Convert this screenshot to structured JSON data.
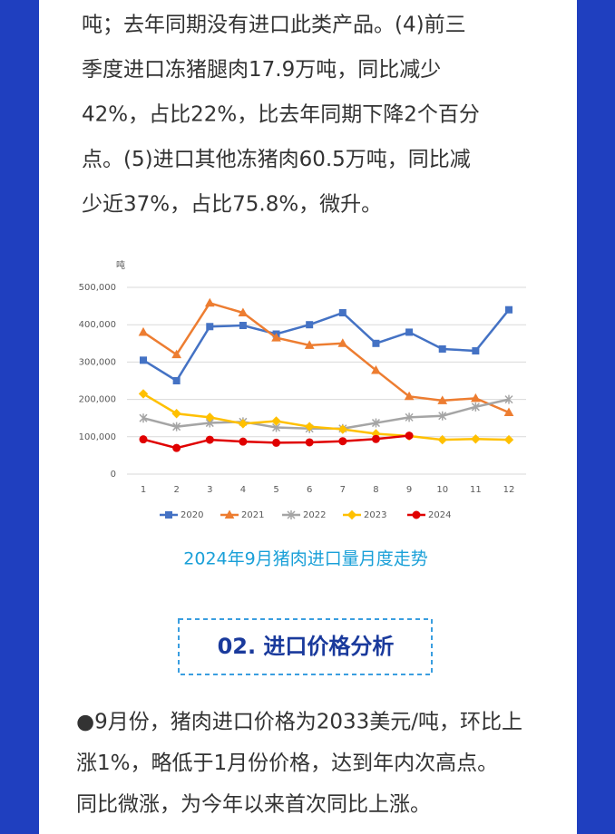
{
  "intro_lines": [
    "吨；去年同期没有进口此类产品。(4)前三",
    "季度进口冻猪腿肉17.9万吨，同比减少",
    "42%，占比22%，比去年同期下降2个百分",
    "点。(5)进口其他冻猪肉60.5万吨，同比减",
    "少近37%，占比75.8%，微升。"
  ],
  "chart_data": {
    "type": "line",
    "y_unit": "吨",
    "categories": [
      "1",
      "2",
      "3",
      "4",
      "5",
      "6",
      "7",
      "8",
      "9",
      "10",
      "11",
      "12"
    ],
    "ylim": [
      0,
      500000
    ],
    "yticks": [
      0,
      {
        "value": 100000,
        "label": "100,000"
      },
      {
        "value": 200000,
        "label": "200,000"
      },
      {
        "value": 300000,
        "label": "300,000"
      },
      {
        "value": 400000,
        "label": "400,000"
      },
      {
        "value": 500000,
        "label": "500,000"
      }
    ],
    "grid": true,
    "legend": "bottom",
    "series": [
      {
        "name": "2020",
        "color": "#4472c4",
        "marker": "square",
        "values": [
          305000,
          250000,
          395000,
          398000,
          375000,
          400000,
          432000,
          350000,
          380000,
          335000,
          330000,
          440000
        ]
      },
      {
        "name": "2021",
        "color": "#ed7d31",
        "marker": "triangle",
        "values": [
          380000,
          320000,
          458000,
          432000,
          365000,
          345000,
          350000,
          278000,
          208000,
          197000,
          203000,
          165000
        ]
      },
      {
        "name": "2022",
        "color": "#a5a5a5",
        "marker": "star",
        "values": [
          150000,
          127000,
          137000,
          140000,
          125000,
          122000,
          122000,
          137000,
          152000,
          156000,
          180000,
          200000
        ]
      },
      {
        "name": "2023",
        "color": "#ffc000",
        "marker": "diamond",
        "values": [
          215000,
          162000,
          152000,
          135000,
          142000,
          127000,
          120000,
          108000,
          102000,
          92000,
          94000,
          92000
        ]
      },
      {
        "name": "2024",
        "color": "#e00000",
        "marker": "circle",
        "values": [
          93000,
          70000,
          92000,
          87000,
          84000,
          85000,
          88000,
          94000,
          103000,
          null,
          null,
          null
        ]
      }
    ]
  },
  "caption": "2024年9月猪肉进口量月度走势",
  "section_heading": "02. 进口价格分析",
  "body_lines": [
    "●9月份，猪肉进口价格为2033美元/吨，环比上",
    "涨1%，略低于1月份价格，达到年内次高点。",
    "同比微涨，为今年以来首次同比上涨。"
  ]
}
